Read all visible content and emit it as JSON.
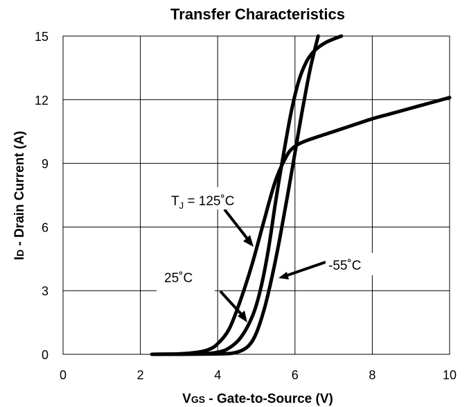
{
  "chart_data": {
    "type": "line",
    "title": "Transfer Characteristics",
    "xlabel": "VGS - Gate-to-Source (V)",
    "ylabel": "ID - Drain Current (A)",
    "xlim": [
      0,
      10
    ],
    "ylim": [
      0,
      15
    ],
    "x_ticks": [
      "0",
      "2",
      "4",
      "6",
      "8",
      "10"
    ],
    "y_ticks": [
      "0",
      "3",
      "6",
      "9",
      "12",
      "15"
    ],
    "grid": true,
    "series": [
      {
        "name": "TJ = 125˚C",
        "x": [
          2.3,
          3.0,
          3.5,
          3.8,
          4.0,
          4.3,
          4.6,
          4.9,
          5.2,
          5.5,
          5.8,
          6.0,
          6.2,
          6.5,
          7.0,
          7.5,
          8.0,
          8.5,
          9.0,
          9.5,
          10.0
        ],
        "y": [
          0,
          0.02,
          0.1,
          0.25,
          0.5,
          1.2,
          2.6,
          4.3,
          6.3,
          8.2,
          9.4,
          9.8,
          10.0,
          10.2,
          10.5,
          10.8,
          11.1,
          11.35,
          11.6,
          11.85,
          12.1
        ]
      },
      {
        "name": "25˚C",
        "x": [
          2.3,
          3.5,
          4.0,
          4.3,
          4.6,
          4.9,
          5.1,
          5.3,
          5.5,
          5.7,
          5.9,
          6.1,
          6.3,
          6.5,
          6.8,
          7.2
        ],
        "y": [
          0,
          0.02,
          0.1,
          0.3,
          0.8,
          1.8,
          3.0,
          4.8,
          7.2,
          9.4,
          11.4,
          12.9,
          13.8,
          14.3,
          14.7,
          15.0
        ]
      },
      {
        "name": "-55˚C",
        "x": [
          2.3,
          4.0,
          4.5,
          4.8,
          5.0,
          5.2,
          5.4,
          5.6,
          5.8,
          6.0,
          6.2,
          6.4,
          6.6
        ],
        "y": [
          0,
          0.02,
          0.1,
          0.4,
          1.0,
          2.1,
          3.6,
          5.4,
          7.4,
          9.5,
          11.6,
          13.5,
          15.0
        ]
      }
    ],
    "annotations": {
      "tj_prefix": "T",
      "tj_sub": "J",
      "tj_rest": " = 125˚C",
      "t25": "25˚C",
      "tm55": "-55˚C"
    },
    "xlabel_parts": {
      "main": "V",
      "sub": "GS",
      "rest": " - Gate-to-Source (V)"
    },
    "ylabel_parts": {
      "main": "I",
      "sub": "D",
      "rest": " - Drain Current (A)"
    }
  }
}
